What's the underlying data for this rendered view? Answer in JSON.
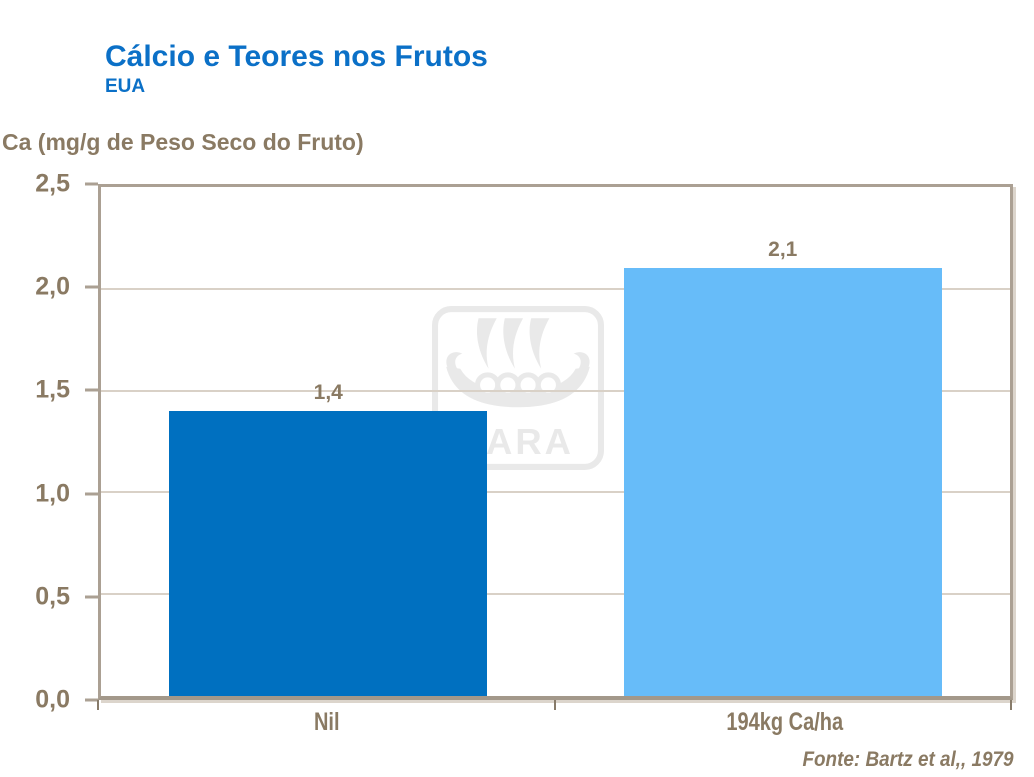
{
  "slide": {
    "title": "Cálcio e Teores nos Frutos",
    "subtitle": "EUA",
    "source": "Fonte: Bartz et al,, 1979"
  },
  "watermark": {
    "name": "yara-logo",
    "text": "YARA",
    "color": "#E9E9E9"
  },
  "chart_data": {
    "type": "bar",
    "title": "Cálcio e Teores nos Frutos",
    "subtitle": "EUA",
    "ylabel": "Ca (mg/g de Peso Seco do Fruto)",
    "xlabel": "",
    "categories": [
      "Nil",
      "194kg Ca/ha"
    ],
    "values": [
      1.4,
      2.1
    ],
    "value_labels": [
      "1,4",
      "2,1"
    ],
    "yticks": [
      "0,0",
      "0,5",
      "1,0",
      "1,5",
      "2,0",
      "2,5"
    ],
    "ylim": [
      0,
      2.5
    ],
    "ytick_step": 0.5,
    "grid": true,
    "legend": "none",
    "decimal_separator": ",",
    "bar_colors": [
      "#0070C0",
      "#67BCF9"
    ],
    "source": "Fonte: Bartz et al,, 1979"
  },
  "colors": {
    "title_blue": "#0B70C7",
    "text_brown": "#8A7A63",
    "gridline": "#D9D1C7",
    "axis_frame": "#ABA093",
    "watermark_gray": "#E9E9E9"
  }
}
